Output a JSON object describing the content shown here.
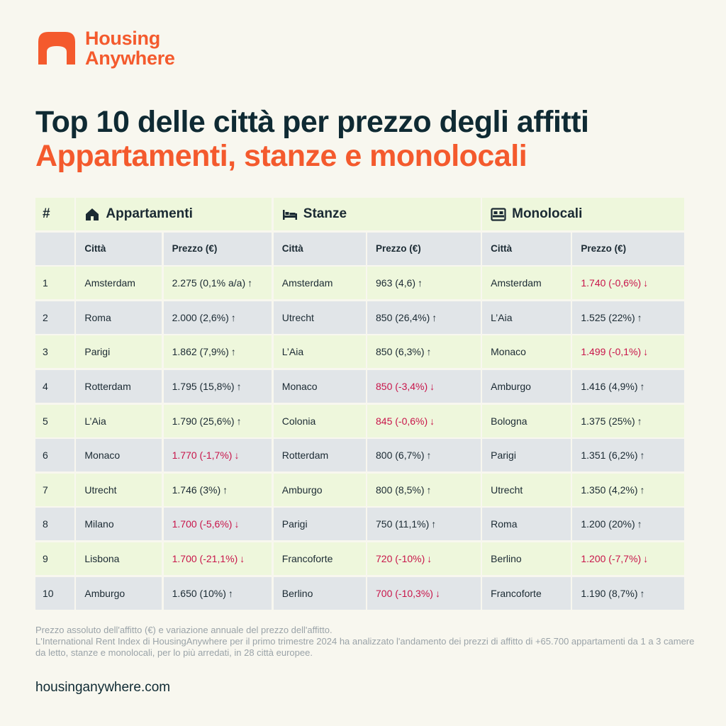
{
  "brand": {
    "name_line1": "Housing",
    "name_line2": "Anywhere",
    "accent": "#f45a2d"
  },
  "title": {
    "line1": "Top 10 delle città per prezzo degli affitti",
    "line2": "Appartamenti, stanze e monolocali"
  },
  "table": {
    "rank_header": "#",
    "groups": [
      {
        "label": "Appartamenti",
        "icon": "house-icon"
      },
      {
        "label": "Stanze",
        "icon": "bed-icon"
      },
      {
        "label": "Monolocali",
        "icon": "sofa-bed-icon"
      }
    ],
    "subheaders": {
      "city": "Città",
      "price": "Prezzo (€)"
    },
    "rows": [
      {
        "rank": "1",
        "apt_city": "Amsterdam",
        "apt_price": "2.275 (0,1% a/a)",
        "apt_dir": "up",
        "room_city": "Amsterdam",
        "room_price": "963 (4,6)",
        "room_dir": "up",
        "studio_city": "Amsterdam",
        "studio_price": "1.740 (-0,6%)",
        "studio_dir": "down"
      },
      {
        "rank": "2",
        "apt_city": "Roma",
        "apt_price": "2.000 (2,6%)",
        "apt_dir": "up",
        "room_city": "Utrecht",
        "room_price": "850 (26,4%)",
        "room_dir": "up",
        "studio_city": "L’Aia",
        "studio_price": "1.525 (22%)",
        "studio_dir": "up"
      },
      {
        "rank": "3",
        "apt_city": "Parigi",
        "apt_price": "1.862 (7,9%)",
        "apt_dir": "up",
        "room_city": "L’Aia",
        "room_price": "850 (6,3%)",
        "room_dir": "up",
        "studio_city": "Monaco",
        "studio_price": "1.499 (-0,1%)",
        "studio_dir": "down"
      },
      {
        "rank": "4",
        "apt_city": "Rotterdam",
        "apt_price": "1.795 (15,8%)",
        "apt_dir": "up",
        "room_city": "Monaco",
        "room_price": "850 (-3,4%)",
        "room_dir": "down",
        "studio_city": "Amburgo",
        "studio_price": "1.416 (4,9%)",
        "studio_dir": "up"
      },
      {
        "rank": "5",
        "apt_city": "L’Aia",
        "apt_price": "1.790 (25,6%)",
        "apt_dir": "up",
        "room_city": "Colonia",
        "room_price": "845 (-0,6%)",
        "room_dir": "down",
        "studio_city": "Bologna",
        "studio_price": "1.375 (25%)",
        "studio_dir": "up"
      },
      {
        "rank": "6",
        "apt_city": "Monaco",
        "apt_price": "1.770 (-1,7%)",
        "apt_dir": "down",
        "room_city": "Rotterdam",
        "room_price": "800 (6,7%)",
        "room_dir": "up",
        "studio_city": "Parigi",
        "studio_price": "1.351 (6,2%)",
        "studio_dir": "up"
      },
      {
        "rank": "7",
        "apt_city": "Utrecht",
        "apt_price": "1.746 (3%)",
        "apt_dir": "up",
        "room_city": "Amburgo",
        "room_price": "800 (8,5%)",
        "room_dir": "up",
        "studio_city": "Utrecht",
        "studio_price": "1.350 (4,2%)",
        "studio_dir": "up"
      },
      {
        "rank": "8",
        "apt_city": "Milano",
        "apt_price": "1.700 (-5,6%)",
        "apt_dir": "down",
        "room_city": "Parigi",
        "room_price": "750 (11,1%)",
        "room_dir": "up",
        "studio_city": "Roma",
        "studio_price": "1.200 (20%)",
        "studio_dir": "up"
      },
      {
        "rank": "9",
        "apt_city": "Lisbona",
        "apt_price": "1.700 (-21,1%)",
        "apt_dir": "down",
        "room_city": "Francoforte",
        "room_price": "720 (-10%)",
        "room_dir": "down",
        "studio_city": "Berlino",
        "studio_price": "1.200 (-7,7%)",
        "studio_dir": "down"
      },
      {
        "rank": "10",
        "apt_city": "Amburgo",
        "apt_price": "1.650 (10%)",
        "apt_dir": "up",
        "room_city": "Berlino",
        "room_price": "700 (-10,3%)",
        "room_dir": "down",
        "studio_city": "Francoforte",
        "studio_price": "1.190 (8,7%)",
        "studio_dir": "up"
      }
    ]
  },
  "colors": {
    "row_light": "#eef7dc",
    "row_gray": "#e1e5e8",
    "negative": "#c8154a",
    "background": "#f8f7ef"
  },
  "footnote": {
    "line1": "Prezzo assoluto dell'affitto (€) e variazione annuale del prezzo dell'affitto.",
    "line2": "L'International Rent Index di HousingAnywhere per il primo trimestre 2024 ha analizzato l'andamento dei prezzi di affitto di +65.700 appartamenti da 1 a 3 camere da letto, stanze e monolocali, per lo più arredati, in 28 città europee."
  },
  "url": "housinganywhere.com"
}
